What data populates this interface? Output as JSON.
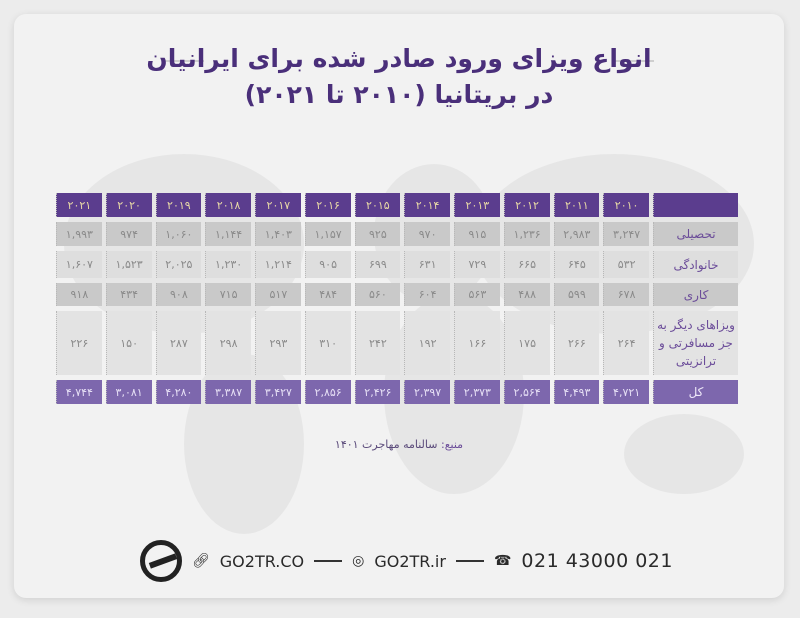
{
  "title": {
    "line1": "انواع ویزای ورود صادر شده برای ایرانیان",
    "line2": "در بریتانیا (۲۰۱۰ تا ۲۰۲۱)"
  },
  "table": {
    "years": [
      "۲۰۱۰",
      "۲۰۱۱",
      "۲۰۱۲",
      "۲۰۱۳",
      "۲۰۱۴",
      "۲۰۱۵",
      "۲۰۱۶",
      "۲۰۱۷",
      "۲۰۱۸",
      "۲۰۱۹",
      "۲۰۲۰",
      "۲۰۲۱"
    ],
    "rows": [
      {
        "label": "تحصیلی",
        "values": [
          "۳,۲۴۷",
          "۲,۹۸۳",
          "۱,۲۳۶",
          "۹۱۵",
          "۹۷۰",
          "۹۲۵",
          "۱,۱۵۷",
          "۱,۴۰۳",
          "۱,۱۴۴",
          "۱,۰۶۰",
          "۹۷۴",
          "۱,۹۹۳"
        ]
      },
      {
        "label": "خانوادگی",
        "values": [
          "۵۳۲",
          "۶۴۵",
          "۶۶۵",
          "۷۲۹",
          "۶۳۱",
          "۶۹۹",
          "۹۰۵",
          "۱,۲۱۴",
          "۱,۲۳۰",
          "۲,۰۲۵",
          "۱,۵۲۳",
          "۱,۶۰۷"
        ]
      },
      {
        "label": "کاری",
        "values": [
          "۶۷۸",
          "۵۹۹",
          "۴۸۸",
          "۵۶۳",
          "۶۰۴",
          "۵۶۰",
          "۴۸۴",
          "۵۱۷",
          "۷۱۵",
          "۹۰۸",
          "۴۳۴",
          "۹۱۸"
        ]
      },
      {
        "label": "ویزاهای دیگر به جز مسافرتی و ترانزیتی",
        "values": [
          "۲۶۴",
          "۲۶۶",
          "۱۷۵",
          "۱۶۶",
          "۱۹۲",
          "۲۴۲",
          "۳۱۰",
          "۲۹۳",
          "۲۹۸",
          "۲۸۷",
          "۱۵۰",
          "۲۲۶"
        ]
      }
    ],
    "total": {
      "label": "کل",
      "values": [
        "۴,۷۲۱",
        "۴,۴۹۳",
        "۲,۵۶۴",
        "۲,۳۷۳",
        "۲,۳۹۷",
        "۲,۴۲۶",
        "۲,۸۵۶",
        "۳,۴۲۷",
        "۳,۳۸۷",
        "۴,۲۸۰",
        "۳,۰۸۱",
        "۴,۷۴۴"
      ]
    }
  },
  "source": {
    "label": "منبع:",
    "text": "سالنامه مهاجرت ۱۴۰۱"
  },
  "footer": {
    "website": "GO2TR.CO",
    "instagram": "GO2TR.ir",
    "phone": "021 43000 021",
    "logo_text": "GO2TR"
  },
  "colors": {
    "header": "#5b3d8e",
    "total": "#7d67ad",
    "title": "#4a2f7a"
  }
}
